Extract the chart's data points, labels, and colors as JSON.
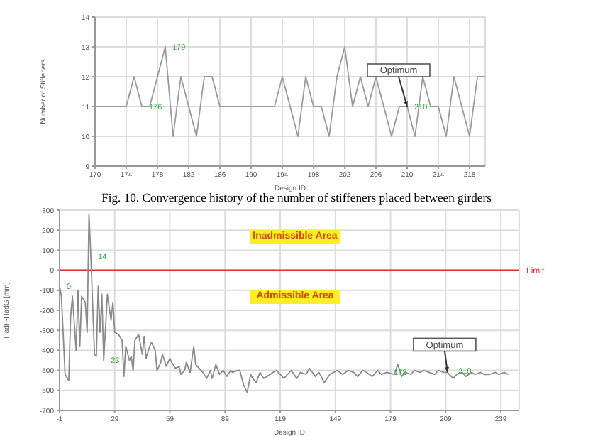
{
  "chart_data": [
    {
      "type": "line",
      "xlabel": "Design ID",
      "ylabel": "Number of Stiffeners",
      "color": "#9a9a9a",
      "x": [
        170,
        171,
        172,
        173,
        174,
        175,
        176,
        177,
        178,
        179,
        180,
        181,
        182,
        183,
        184,
        185,
        186,
        187,
        188,
        189,
        190,
        191,
        192,
        193,
        194,
        195,
        196,
        197,
        198,
        199,
        200,
        201,
        202,
        203,
        204,
        205,
        206,
        207,
        208,
        209,
        210,
        211,
        212,
        213,
        214,
        215,
        216,
        217,
        218,
        219,
        220
      ],
      "values": [
        11,
        11,
        11,
        11,
        11,
        12,
        11,
        11,
        12,
        13,
        10,
        12,
        11,
        10,
        12,
        12,
        11,
        11,
        11,
        11,
        11,
        11,
        11,
        11,
        12,
        11,
        10,
        12,
        11,
        11,
        10,
        12,
        13,
        11,
        12,
        11,
        12,
        11,
        10,
        11,
        11,
        10,
        12,
        11,
        11,
        10,
        12,
        11,
        10,
        12,
        12
      ],
      "xlim": [
        170,
        220
      ],
      "xticks": [
        170,
        174,
        178,
        182,
        186,
        190,
        194,
        198,
        202,
        206,
        210,
        214,
        218
      ],
      "ylim": [
        9,
        14
      ],
      "yticks": [
        9,
        10,
        11,
        12,
        13,
        14
      ],
      "grid": true,
      "annotations": [
        "Fig. 10. Convergence history of the number of stiffeners placed between girders",
        {
          "text": "Optimum",
          "x": 210,
          "y": 11
        },
        {
          "text": "176",
          "x": 176,
          "y": 11
        },
        {
          "text": "179",
          "x": 179,
          "y": 13
        },
        {
          "text": "210",
          "x": 210,
          "y": 11
        }
      ]
    },
    {
      "type": "line",
      "xlabel": "Design ID",
      "ylabel": "HadF-HadG [mm]",
      "color": "#8a8a8a",
      "x": [
        -1,
        0,
        2,
        4,
        5,
        6,
        8,
        9,
        10,
        11,
        13,
        14,
        15,
        16,
        18,
        19,
        20,
        21,
        22,
        23,
        25,
        27,
        28,
        29,
        31,
        33,
        34,
        35,
        37,
        38,
        39,
        40,
        42,
        44,
        45,
        46,
        48,
        49,
        51,
        52,
        54,
        55,
        57,
        59,
        60,
        62,
        64,
        65,
        67,
        68,
        70,
        72,
        73,
        75,
        77,
        79,
        81,
        82,
        84,
        86,
        88,
        90,
        92,
        93,
        96,
        97,
        99,
        101,
        103,
        104,
        106,
        108,
        110,
        112,
        115,
        117,
        119,
        121,
        123,
        125,
        128,
        130,
        133,
        135,
        138,
        140,
        143,
        146,
        148,
        150,
        153,
        156,
        159,
        161,
        164,
        166,
        169,
        172,
        174,
        177,
        181,
        183,
        185,
        187,
        190,
        192,
        195,
        197,
        200,
        203,
        205,
        208,
        210,
        213,
        215,
        218,
        220,
        223,
        225,
        228,
        230,
        233,
        236,
        238,
        241,
        243
      ],
      "values": [
        -80,
        -130,
        -520,
        -550,
        -230,
        -130,
        -400,
        -100,
        -380,
        -130,
        -160,
        -310,
        280,
        70,
        -420,
        -430,
        -80,
        -310,
        -120,
        -450,
        -120,
        -250,
        -160,
        -310,
        -320,
        -350,
        -530,
        -380,
        -450,
        -430,
        -500,
        -350,
        -320,
        -420,
        -330,
        -440,
        -380,
        -360,
        -400,
        -500,
        -460,
        -420,
        -480,
        -440,
        -460,
        -490,
        -480,
        -520,
        -500,
        -460,
        -510,
        -380,
        -470,
        -490,
        -510,
        -540,
        -500,
        -540,
        -470,
        -520,
        -500,
        -530,
        -500,
        -510,
        -500,
        -500,
        -570,
        -610,
        -520,
        -540,
        -560,
        -510,
        -540,
        -530,
        -510,
        -500,
        -520,
        -540,
        -520,
        -500,
        -540,
        -510,
        -520,
        -490,
        -530,
        -510,
        -560,
        -520,
        -510,
        -500,
        -520,
        -500,
        -510,
        -530,
        -500,
        -510,
        -530,
        -500,
        -520,
        -510,
        -520,
        -470,
        -530,
        -510,
        -520,
        -500,
        -510,
        -500,
        -510,
        -520,
        -500,
        -510,
        -510,
        -540,
        -520,
        -510,
        -530,
        -510,
        -520,
        -510,
        -520,
        -520,
        -510,
        -520,
        -510,
        -520
      ],
      "xlim": [
        -1,
        249
      ],
      "xticks": [
        -1,
        29,
        59,
        89,
        119,
        149,
        179,
        209,
        239
      ],
      "ylim": [
        -700,
        300
      ],
      "yticks": [
        -700,
        -600,
        -500,
        -400,
        -300,
        -200,
        -100,
        0,
        100,
        200,
        300
      ],
      "grid": true,
      "ref_lines": [
        {
          "axis": "y",
          "value": 0,
          "label": "Limit",
          "color": "#e03030"
        }
      ],
      "annotations": [
        "Inadmissible Area",
        "Admissible Area",
        {
          "text": "Optimum",
          "x": 210,
          "y": -510
        },
        {
          "text": "0",
          "x": -1,
          "y": -80
        },
        {
          "text": "14",
          "x": 16,
          "y": 70
        },
        {
          "text": "23",
          "x": 23,
          "y": -450
        },
        {
          "text": "178",
          "x": 177,
          "y": -510
        },
        {
          "text": "210",
          "x": 212,
          "y": -500
        }
      ]
    }
  ]
}
